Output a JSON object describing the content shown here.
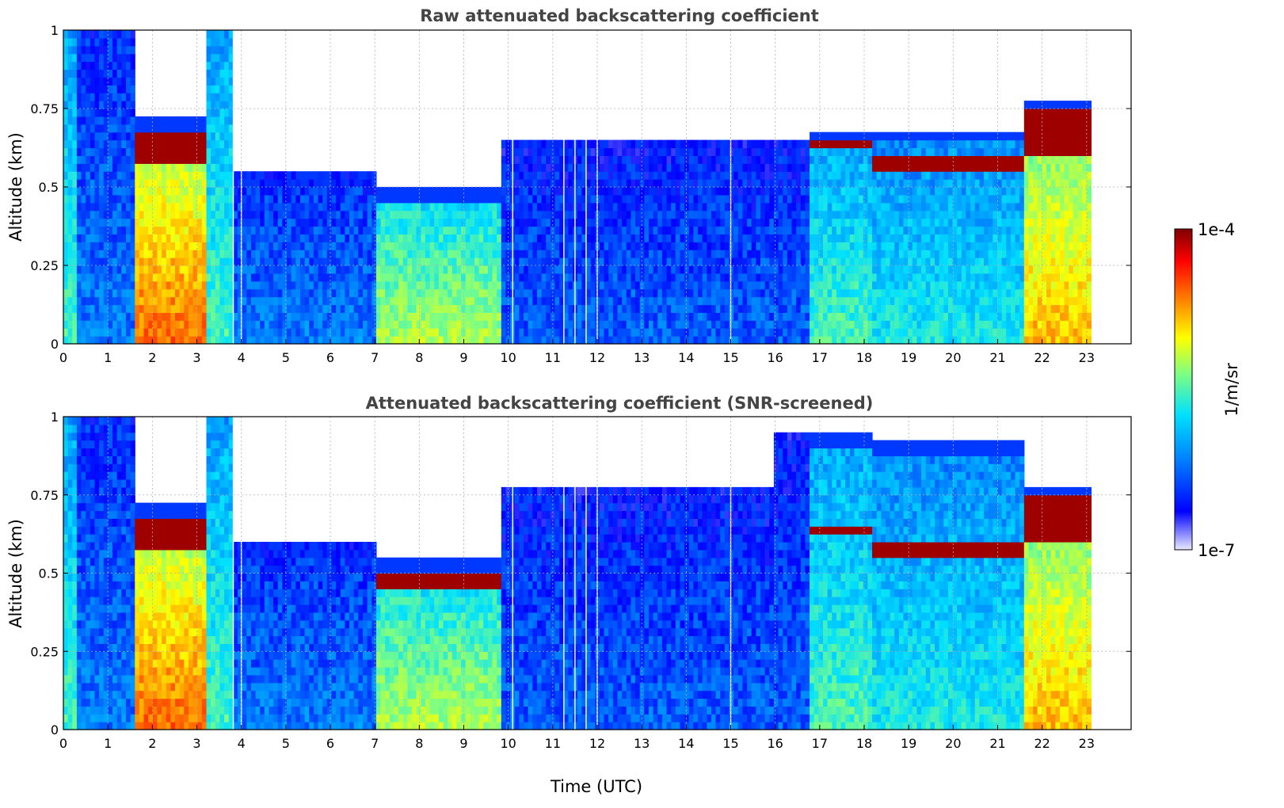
{
  "chart_data": [
    {
      "type": "heatmap",
      "title": "Raw attenuated backscattering coefficient",
      "xlabel": "",
      "ylabel": "Altitude (km)",
      "xlim": [
        0,
        24
      ],
      "ylim": [
        0,
        1
      ],
      "x_ticks": [
        "0",
        "1",
        "2",
        "3",
        "4",
        "5",
        "6",
        "7",
        "8",
        "9",
        "10",
        "11",
        "12",
        "13",
        "14",
        "15",
        "16",
        "17",
        "18",
        "19",
        "20",
        "21",
        "22",
        "23"
      ],
      "y_ticks": [
        "0",
        "0.25",
        "0.5",
        "0.75",
        "1"
      ],
      "grid": true,
      "data_end_hour": 23.1,
      "gaps_hours": [
        3.82,
        4.0,
        10.1,
        11.25,
        11.5,
        11.75,
        12.0,
        15.0
      ],
      "episodes": [
        {
          "start": 0.0,
          "end": 0.35,
          "top": 1.0,
          "intensity": 0.45
        },
        {
          "start": 0.35,
          "end": 1.6,
          "top": 1.0,
          "intensity": 0.25
        },
        {
          "start": 1.6,
          "end": 3.25,
          "top": 0.72,
          "intensity": 0.78,
          "cloud_base": 0.58,
          "cloud_top": 0.68
        },
        {
          "start": 3.25,
          "end": 3.8,
          "top": 1.0,
          "intensity": 0.45
        },
        {
          "start": 3.8,
          "end": 7.0,
          "top": 0.55,
          "intensity": 0.25
        },
        {
          "start": 7.0,
          "end": 9.8,
          "top": 0.5,
          "intensity": 0.55,
          "cloud_base": 0.46,
          "cloud_top": 0.52
        },
        {
          "start": 9.8,
          "end": 16.8,
          "top": 0.65,
          "intensity": 0.22
        },
        {
          "start": 16.8,
          "end": 18.2,
          "top": 0.68,
          "intensity": 0.45,
          "cloud_base": 0.62,
          "cloud_top": 0.66
        },
        {
          "start": 18.2,
          "end": 21.6,
          "top": 0.68,
          "intensity": 0.4,
          "cloud_base": 0.55,
          "cloud_top": 0.6
        },
        {
          "start": 21.6,
          "end": 23.1,
          "top": 0.78,
          "intensity": 0.7,
          "cloud_base": 0.6,
          "cloud_top": 0.74
        }
      ]
    },
    {
      "type": "heatmap",
      "title": "Attenuated backscattering coefficient (SNR-screened)",
      "xlabel": "Time (UTC)",
      "ylabel": "Altitude (km)",
      "xlim": [
        0,
        24
      ],
      "ylim": [
        0,
        1
      ],
      "x_ticks": [
        "0",
        "1",
        "2",
        "3",
        "4",
        "5",
        "6",
        "7",
        "8",
        "9",
        "10",
        "11",
        "12",
        "13",
        "14",
        "15",
        "16",
        "17",
        "18",
        "19",
        "20",
        "21",
        "22",
        "23"
      ],
      "y_ticks": [
        "0",
        "0.25",
        "0.5",
        "0.75",
        "1"
      ],
      "grid": true,
      "data_end_hour": 23.1,
      "gaps_hours": [
        3.82,
        4.0,
        10.1,
        11.25,
        11.5,
        11.75,
        12.0,
        15.0
      ],
      "episodes": [
        {
          "start": 0.0,
          "end": 0.35,
          "top": 1.0,
          "intensity": 0.45
        },
        {
          "start": 0.35,
          "end": 1.6,
          "top": 1.0,
          "intensity": 0.25
        },
        {
          "start": 1.6,
          "end": 3.25,
          "top": 0.72,
          "intensity": 0.78,
          "cloud_base": 0.58,
          "cloud_top": 0.68
        },
        {
          "start": 3.25,
          "end": 3.8,
          "top": 1.0,
          "intensity": 0.45
        },
        {
          "start": 3.8,
          "end": 7.0,
          "top": 0.6,
          "intensity": 0.25
        },
        {
          "start": 7.0,
          "end": 9.8,
          "top": 0.55,
          "intensity": 0.55,
          "cloud_base": 0.46,
          "cloud_top": 0.52
        },
        {
          "start": 9.8,
          "end": 16.0,
          "top": 0.78,
          "intensity": 0.22
        },
        {
          "start": 16.0,
          "end": 16.8,
          "top": 0.95,
          "intensity": 0.22
        },
        {
          "start": 16.8,
          "end": 18.2,
          "top": 0.95,
          "intensity": 0.45,
          "cloud_base": 0.62,
          "cloud_top": 0.66
        },
        {
          "start": 18.2,
          "end": 21.6,
          "top": 0.92,
          "intensity": 0.4,
          "cloud_base": 0.55,
          "cloud_top": 0.6
        },
        {
          "start": 21.6,
          "end": 23.1,
          "top": 0.78,
          "intensity": 0.7,
          "cloud_base": 0.6,
          "cloud_top": 0.74
        }
      ]
    }
  ],
  "colorbar": {
    "label": "1/m/sr",
    "max_label": "1e-4",
    "min_label": "1e-7",
    "colormap": [
      "#e8e8ff",
      "#0000ff",
      "#0080ff",
      "#00e0ff",
      "#80ff80",
      "#ffff00",
      "#ff8000",
      "#ff0000",
      "#800000"
    ]
  },
  "colors": {
    "saturated": "#000000",
    "grid": "#b0b0b0",
    "title": "#444444"
  }
}
